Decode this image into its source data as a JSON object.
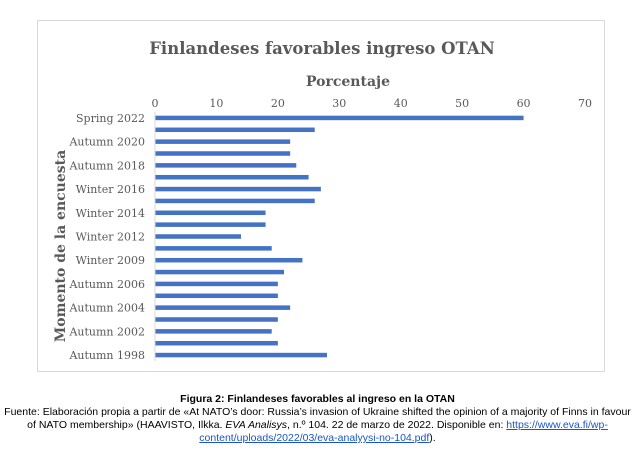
{
  "chart_data": {
    "type": "bar",
    "orientation": "horizontal",
    "title": "Finlandeses favorables ingreso OTAN",
    "xlabel": "Porcentaje",
    "ylabel": "Momento de la encuesta",
    "xlim": [
      0,
      70
    ],
    "xticks": [
      0,
      10,
      20,
      30,
      40,
      50,
      60,
      70
    ],
    "x_axis_position": "top",
    "grid": false,
    "legend": "none",
    "bar_color": "#4472c4",
    "categories": [
      "Spring 2022",
      "",
      "Autumn 2020",
      "",
      "Autumn 2018",
      "",
      "Winter 2016",
      "",
      "Winter 2014",
      "",
      "Winter 2012",
      "",
      "Winter 2009",
      "",
      "Autumn 2006",
      "",
      "Autumn 2004",
      "",
      "Autumn 2002",
      "",
      "Autumn 1998"
    ],
    "values": [
      60,
      26,
      22,
      22,
      23,
      25,
      27,
      26,
      18,
      18,
      14,
      19,
      24,
      21,
      20,
      20,
      22,
      20,
      19,
      20,
      28
    ]
  },
  "caption": {
    "title": "Figura 2: Finlandeses favorables al ingreso en la OTAN",
    "source_a": "Fuente: Elaboración propia a partir de «At NATO’s door: Russia’s invasion of Ukraine shifted the opinion of a majority of Finns in favour of NATO membership» (HAAVISTO, Ilkka. ",
    "source_em": "EVA Analisys",
    "source_b": ", n.º 104. 22 de marzo de 2022. Disponible en: ",
    "link": "https://www.eva.fi/wp-content/uploads/2022/03/eva-analyysi-no-104.pdf",
    "source_end": ")."
  }
}
